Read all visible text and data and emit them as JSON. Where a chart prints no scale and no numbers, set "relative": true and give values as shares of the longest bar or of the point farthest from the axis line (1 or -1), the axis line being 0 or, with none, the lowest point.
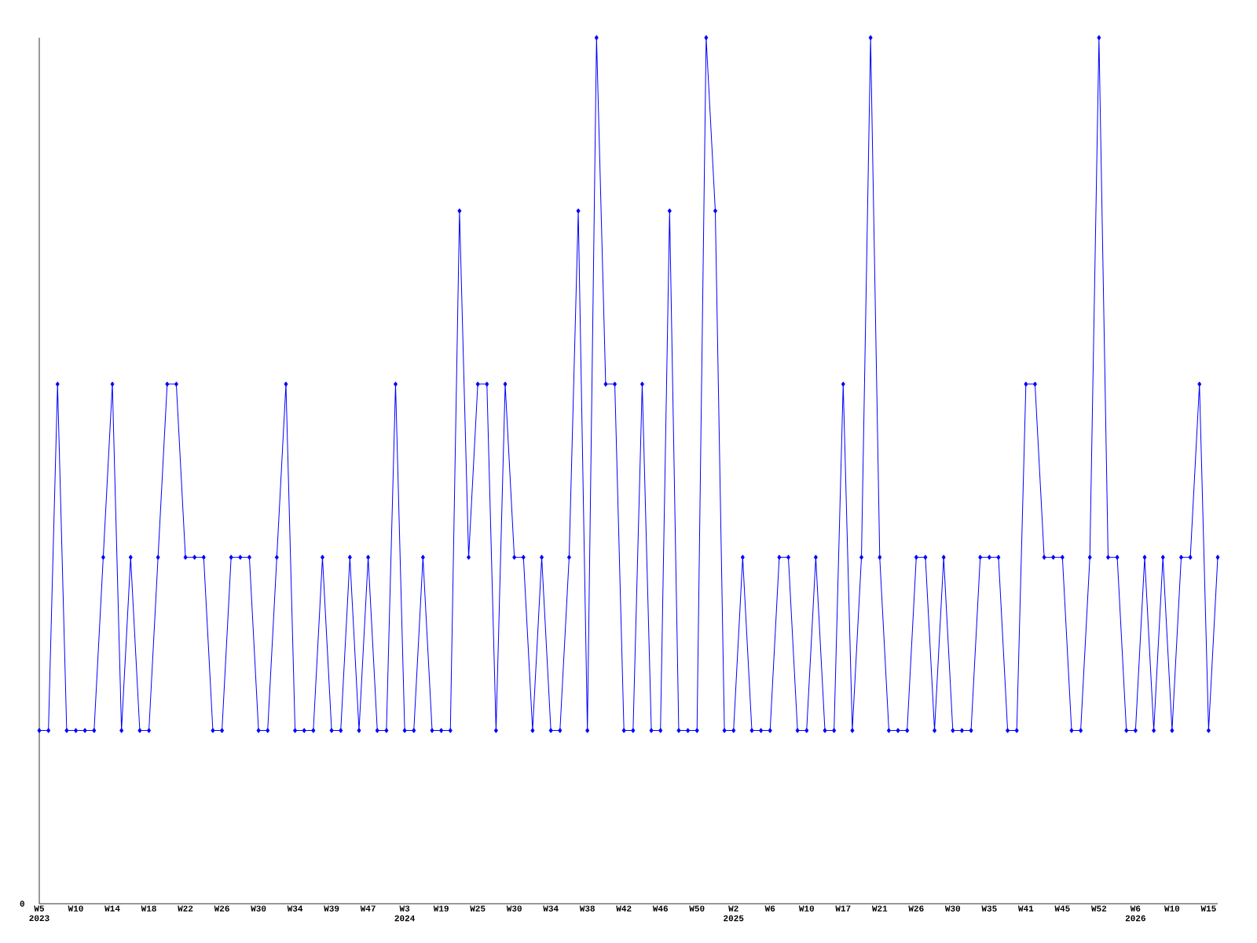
{
  "chart_data": {
    "type": "line",
    "relative": true,
    "categories": [
      "W5 2023",
      null,
      null,
      null,
      "W10",
      null,
      null,
      null,
      "W14",
      null,
      null,
      null,
      "W18",
      null,
      null,
      null,
      "W22",
      null,
      null,
      null,
      "W26",
      null,
      null,
      null,
      "W30",
      null,
      null,
      null,
      "W34",
      null,
      null,
      null,
      "W39",
      null,
      null,
      null,
      "W47",
      null,
      null,
      null,
      "W3 2024",
      null,
      null,
      null,
      "W19",
      null,
      null,
      null,
      "W25",
      null,
      null,
      null,
      "W30",
      null,
      null,
      null,
      "W34",
      null,
      null,
      null,
      "W38",
      null,
      null,
      null,
      "W42",
      null,
      null,
      null,
      "W46",
      null,
      null,
      null,
      "W50",
      null,
      null,
      null,
      "W2 2025",
      null,
      null,
      null,
      "W6",
      null,
      null,
      null,
      "W10",
      null,
      null,
      null,
      "W17",
      null,
      null,
      null,
      "W21",
      null,
      null,
      null,
      "W26",
      null,
      null,
      null,
      "W30",
      null,
      null,
      null,
      "W35",
      null,
      null,
      null,
      "W41",
      null,
      null,
      null,
      "W45",
      null,
      null,
      null,
      "W52",
      null,
      null,
      null,
      "W6 2026",
      null,
      null,
      null,
      "W10",
      null,
      null,
      null,
      "W15",
      null
    ],
    "values": [
      0.2,
      0.2,
      0.6,
      0.2,
      0.2,
      0.2,
      0.2,
      0.4,
      0.6,
      0.2,
      0.4,
      0.2,
      0.2,
      0.4,
      0.6,
      0.6,
      0.4,
      0.4,
      0.4,
      0.2,
      0.2,
      0.4,
      0.4,
      0.4,
      0.2,
      0.2,
      0.4,
      0.6,
      0.2,
      0.2,
      0.2,
      0.4,
      0.2,
      0.2,
      0.4,
      0.2,
      0.4,
      0.2,
      0.2,
      0.6,
      0.2,
      0.2,
      0.4,
      0.2,
      0.2,
      0.2,
      0.8,
      0.4,
      0.6,
      0.6,
      0.2,
      0.6,
      0.4,
      0.4,
      0.2,
      0.4,
      0.2,
      0.2,
      0.4,
      0.8,
      0.2,
      1.0,
      0.6,
      0.6,
      0.2,
      0.2,
      0.6,
      0.2,
      0.2,
      0.8,
      0.2,
      0.2,
      0.2,
      1.0,
      0.8,
      0.2,
      0.2,
      0.4,
      0.2,
      0.2,
      0.2,
      0.4,
      0.4,
      0.2,
      0.2,
      0.4,
      0.2,
      0.2,
      0.6,
      0.2,
      0.4,
      1.0,
      0.4,
      0.2,
      0.2,
      0.2,
      0.4,
      0.4,
      0.2,
      0.4,
      0.2,
      0.2,
      0.2,
      0.4,
      0.4,
      0.4,
      0.2,
      0.2,
      0.6,
      0.6,
      0.4,
      0.4,
      0.4,
      0.2,
      0.2,
      0.4,
      1.0,
      0.4,
      0.4,
      0.2,
      0.2,
      0.4,
      0.2,
      0.4,
      0.2,
      0.4,
      0.4,
      0.6,
      0.2,
      0.4
    ],
    "annotations": [
      "0"
    ],
    "color": "#0000ff",
    "marker": "diamond",
    "line_style": "solid"
  }
}
